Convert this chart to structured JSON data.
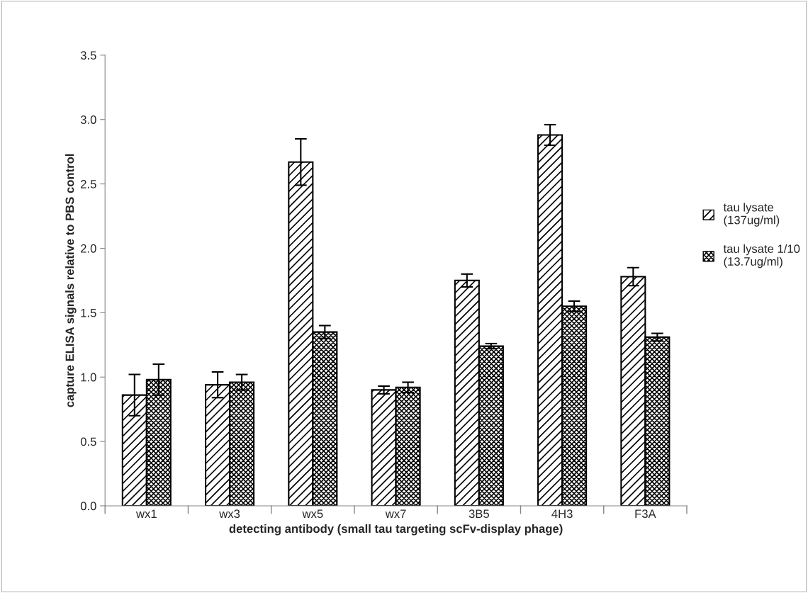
{
  "chart_data": {
    "type": "bar",
    "xlabel": "detecting antibody (small tau targeting scFv-display phage)",
    "ylabel": "capture ELISA signals relative to PBS control",
    "categories": [
      "wx1",
      "wx3",
      "wx5",
      "wx7",
      "3B5",
      "4H3",
      "F3A"
    ],
    "series": [
      {
        "name": "tau lysate\n(137ug/ml)",
        "color": "#000000",
        "values": [
          0.86,
          0.94,
          2.67,
          0.9,
          1.75,
          2.88,
          1.78
        ],
        "errors": [
          0.16,
          0.1,
          0.18,
          0.03,
          0.05,
          0.08,
          0.07
        ]
      },
      {
        "name": "tau lysate 1/10\n(13.7ug/ml)",
        "color": "#000000",
        "values": [
          0.98,
          0.96,
          1.35,
          0.92,
          1.24,
          1.55,
          1.31
        ],
        "errors": [
          0.12,
          0.06,
          0.05,
          0.04,
          0.02,
          0.04,
          0.03
        ]
      }
    ],
    "ylim": [
      0,
      3.5
    ],
    "yticks": [
      {
        "value": 0,
        "label": "0.0"
      },
      {
        "value": 0.5,
        "label": "0.5"
      },
      {
        "value": 1,
        "label": "1.0"
      },
      {
        "value": 1.5,
        "label": "1.5"
      },
      {
        "value": 2,
        "label": "2.0"
      },
      {
        "value": 2.5,
        "label": "2.5"
      },
      {
        "value": 3,
        "label": "3.0"
      },
      {
        "value": 3.5,
        "label": "3.5"
      }
    ],
    "grid": false,
    "legend": "right"
  }
}
